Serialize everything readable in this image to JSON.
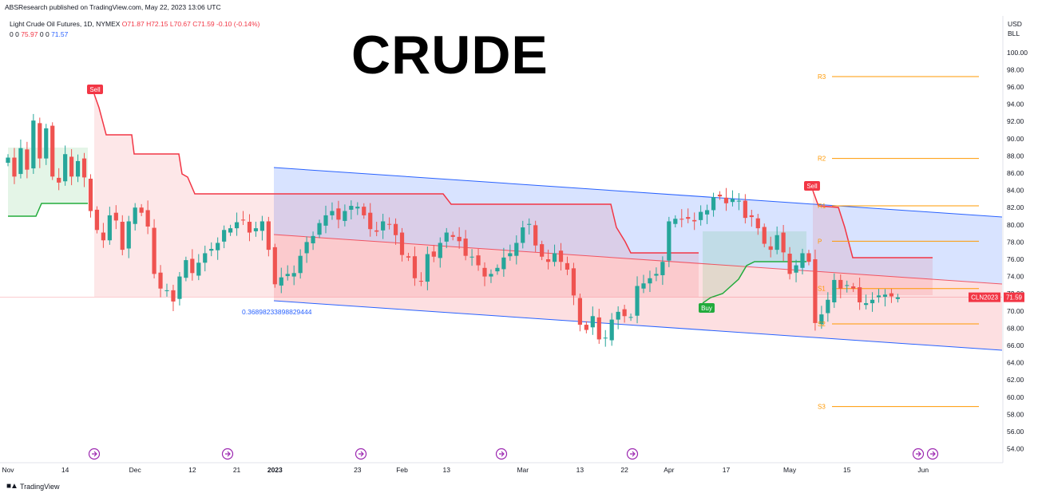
{
  "header": {
    "publisher": "ABSResearch published on TradingView.com, May 22, 2023 13:06 UTC",
    "symbol_line": "Light Crude Oil Futures, 1D, NYMEX",
    "ohlc": {
      "o": "O71.87",
      "h": "H72.15",
      "l": "L70.67",
      "c": "C71.59",
      "chg": "-0.10 (-0.14%)"
    },
    "indicator_line": {
      "zeros": "0 0",
      "val1": "75.97",
      "zeros2": "0 0",
      "val2": "71.57"
    },
    "big_title": "CRUDE",
    "currency": "USD",
    "unit": "BLL",
    "logo": "TradingView"
  },
  "colors": {
    "up": "#26a69a",
    "down": "#ef5350",
    "channel_line": "#2962ff",
    "trail_red": "#f23645",
    "trail_green": "#22ab3c",
    "pivot": "#ff9800"
  },
  "chart_data": {
    "type": "candlestick",
    "ylim": [
      53.5,
      101
    ],
    "y_ticks": [
      "54.00",
      "56.00",
      "58.00",
      "60.00",
      "62.00",
      "64.00",
      "66.00",
      "68.00",
      "70.00",
      "72.00",
      "74.00",
      "76.00",
      "78.00",
      "80.00",
      "82.00",
      "84.00",
      "86.00",
      "88.00",
      "90.00",
      "92.00",
      "94.00",
      "96.00",
      "98.00",
      "100.00"
    ],
    "x_ticks": [
      {
        "label": "Nov",
        "i": 0
      },
      {
        "label": "14",
        "i": 9
      },
      {
        "label": "Dec",
        "i": 20
      },
      {
        "label": "12",
        "i": 29
      },
      {
        "label": "21",
        "i": 36
      },
      {
        "label": "2023",
        "i": 42
      },
      {
        "label": "23",
        "i": 55
      },
      {
        "label": "Feb",
        "i": 62
      },
      {
        "label": "13",
        "i": 69
      },
      {
        "label": "Mar",
        "i": 81
      },
      {
        "label": "13",
        "i": 90
      },
      {
        "label": "22",
        "i": 97
      },
      {
        "label": "Apr",
        "i": 104
      },
      {
        "label": "17",
        "i": 113
      },
      {
        "label": "May",
        "i": 123
      },
      {
        "label": "15",
        "i": 132
      },
      {
        "label": "Jun",
        "i": 144
      }
    ],
    "closes": [
      87.8,
      85.6,
      88.9,
      86.4,
      92.1,
      87.7,
      91.2,
      85.6,
      84.9,
      88.2,
      85.6,
      87.4,
      85.5,
      81.6,
      79.4,
      78.2,
      81.1,
      80.5,
      77.1,
      80.4,
      82.0,
      81.4,
      79.8,
      74.3,
      72.6,
      72.4,
      71.1,
      74.0,
      75.9,
      74.4,
      75.6,
      76.7,
      77.2,
      77.9,
      79.4,
      79.6,
      80.3,
      80.5,
      79.1,
      79.6,
      80.4,
      77.1,
      73.1,
      73.9,
      74.3,
      74.4,
      76.4,
      78.0,
      78.7,
      80.2,
      81.1,
      81.6,
      80.6,
      81.6,
      82.2,
      82.1,
      81.1,
      79.5,
      79.2,
      80.4,
      80.1,
      78.8,
      76.5,
      76.2,
      73.8,
      73.4,
      76.6,
      76.3,
      77.9,
      79.1,
      78.6,
      78.1,
      76.4,
      76.3,
      75.3,
      74.0,
      74.3,
      75.0,
      76.2,
      76.7,
      77.9,
      79.7,
      80.1,
      77.6,
      76.3,
      75.7,
      76.7,
      75.7,
      74.8,
      71.8,
      68.4,
      67.8,
      69.4,
      66.7,
      66.9,
      69.0,
      69.9,
      69.4,
      69.3,
      72.9,
      73.2,
      73.8,
      74.3,
      75.7,
      80.4,
      80.7,
      80.6,
      80.7,
      80.4,
      81.5,
      81.7,
      83.2,
      83.3,
      82.5,
      83.0,
      82.8,
      80.8,
      80.9,
      79.6,
      77.8,
      77.1,
      78.8,
      76.8,
      74.3,
      75.3,
      76.7,
      75.7,
      68.6,
      69.6,
      71.3,
      73.6,
      72.6,
      73.0,
      72.6,
      71.0,
      70.9,
      71.3,
      71.8,
      71.9,
      71.69,
      71.59
    ],
    "annotations": {
      "channel_label": "0.36898233898829444",
      "sell_label_1": "Sell",
      "sell_label_2": "Sell",
      "buy_label": "Buy",
      "price_tag": "71.59",
      "ticker_tag": "CLN2023",
      "pivots": [
        {
          "label": "R3",
          "value": 97.2
        },
        {
          "label": "R2",
          "value": 87.7
        },
        {
          "label": "R1",
          "value": 82.2
        },
        {
          "label": "P",
          "value": 78.1
        },
        {
          "label": "S1",
          "value": 72.6
        },
        {
          "label": "S2",
          "value": 68.5
        },
        {
          "label": "S3",
          "value": 58.9
        }
      ]
    }
  }
}
